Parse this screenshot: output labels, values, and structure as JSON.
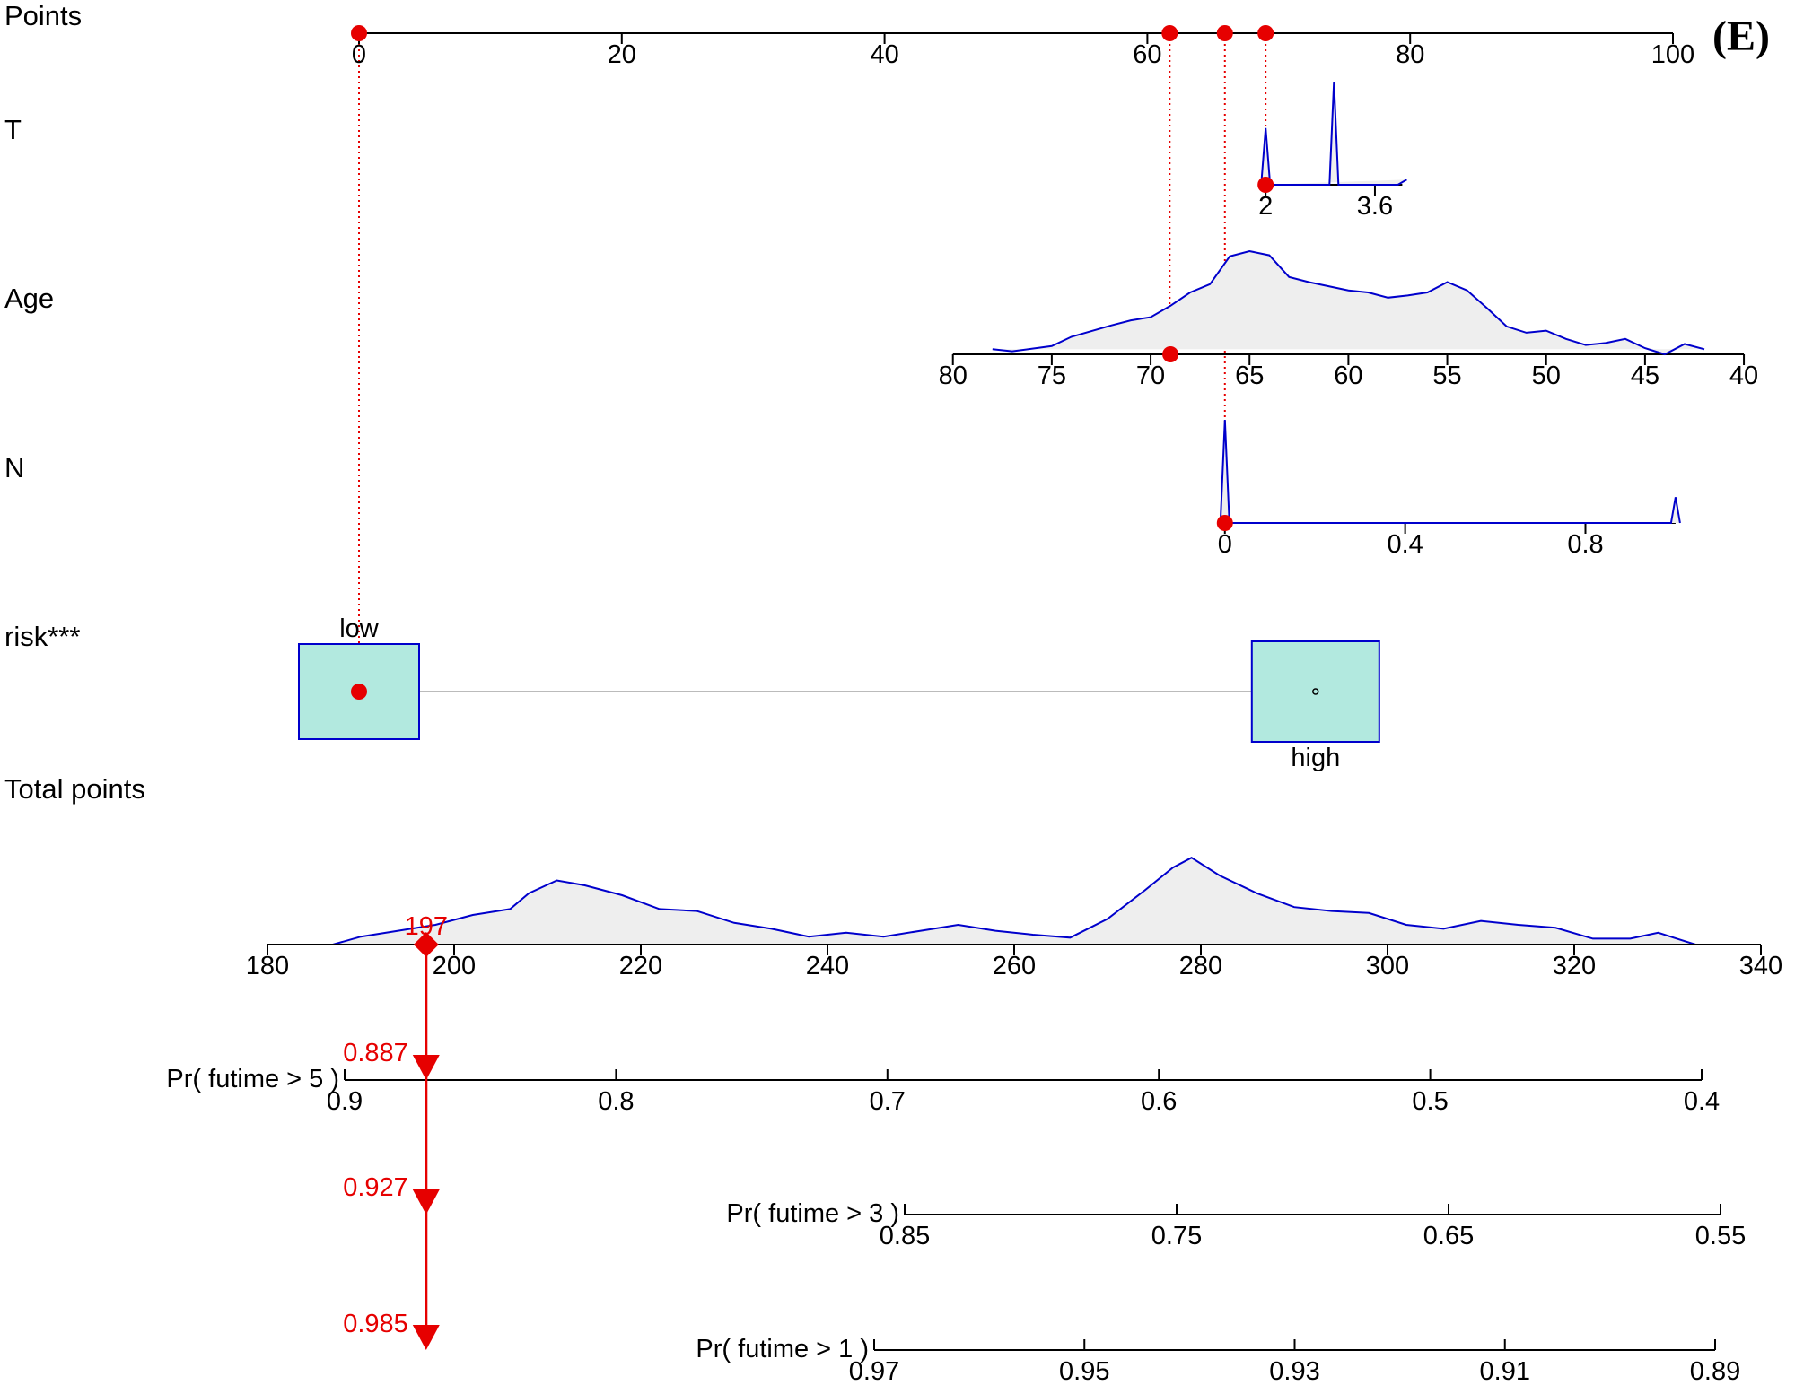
{
  "panel_label": "(E)",
  "chart_data": {
    "type": "nomogram",
    "points_axis": {
      "label": "Points",
      "ticks": [
        "0",
        "20",
        "40",
        "60",
        "80",
        "100"
      ],
      "tick_values": [
        0,
        20,
        40,
        60,
        80,
        100
      ],
      "range": [
        0,
        100
      ],
      "markers": [
        0,
        61.7,
        65.9,
        69.0
      ]
    },
    "variables": [
      {
        "key": "T",
        "label": "T",
        "ticks": [
          "2",
          "3.6"
        ],
        "tick_values": [
          2,
          3.6
        ],
        "scale_values": [
          2,
          4
        ],
        "scale_points": [
          69.0,
          79.4
        ],
        "selected_value": 2,
        "selected_points": 69.0,
        "density": [
          [
            2,
            0
          ],
          [
            2,
            0.55
          ],
          [
            2,
            0
          ],
          [
            3,
            0
          ],
          [
            3,
            1.0
          ],
          [
            3,
            0
          ],
          [
            4,
            0
          ],
          [
            4,
            0.05
          ]
        ]
      },
      {
        "key": "Age",
        "label": "Age",
        "ticks": [
          "80",
          "75",
          "70",
          "65",
          "60",
          "55",
          "50",
          "45",
          "40"
        ],
        "tick_values": [
          80,
          75,
          70,
          65,
          60,
          55,
          50,
          45,
          40
        ],
        "scale_values": [
          80,
          40
        ],
        "scale_points": [
          45.2,
          105.4
        ],
        "selected_value": 69,
        "selected_points": 61.7,
        "density": [
          [
            78,
            0.05
          ],
          [
            77,
            0.03
          ],
          [
            75,
            0.08
          ],
          [
            74,
            0.17
          ],
          [
            72,
            0.28
          ],
          [
            71,
            0.33
          ],
          [
            70,
            0.36
          ],
          [
            69,
            0.47
          ],
          [
            68,
            0.6
          ],
          [
            67,
            0.68
          ],
          [
            66,
            0.95
          ],
          [
            65,
            1.0
          ],
          [
            64,
            0.96
          ],
          [
            63,
            0.75
          ],
          [
            62,
            0.7
          ],
          [
            61,
            0.66
          ],
          [
            60,
            0.62
          ],
          [
            59,
            0.6
          ],
          [
            58,
            0.55
          ],
          [
            57,
            0.57
          ],
          [
            56,
            0.6
          ],
          [
            55,
            0.7
          ],
          [
            54,
            0.62
          ],
          [
            53,
            0.45
          ],
          [
            52,
            0.27
          ],
          [
            51,
            0.21
          ],
          [
            50,
            0.23
          ],
          [
            49,
            0.15
          ],
          [
            48,
            0.09
          ],
          [
            47,
            0.11
          ],
          [
            46,
            0.15
          ],
          [
            45,
            0.06
          ],
          [
            44,
            0.0
          ],
          [
            43,
            0.1
          ],
          [
            42,
            0.05
          ]
        ]
      },
      {
        "key": "N",
        "label": "N",
        "ticks": [
          "0",
          "0.4",
          "0.8"
        ],
        "tick_values": [
          0,
          0.4,
          0.8
        ],
        "scale_values": [
          0,
          1
        ],
        "scale_points": [
          65.9,
          100.2
        ],
        "selected_value": 0,
        "selected_points": 65.9,
        "density": [
          [
            0,
            0
          ],
          [
            0,
            1.0
          ],
          [
            0,
            0
          ],
          [
            1,
            0
          ],
          [
            1,
            0.25
          ],
          [
            1,
            0
          ]
        ]
      },
      {
        "key": "risk",
        "label": "risk***",
        "categories": [
          "low",
          "high"
        ],
        "category_points": [
          0,
          72.8
        ],
        "selected_value": "low",
        "selected_points": 0
      }
    ],
    "total_points_axis": {
      "label": "Total points",
      "ticks": [
        "180",
        "200",
        "220",
        "240",
        "260",
        "280",
        "300",
        "320",
        "340"
      ],
      "tick_values": [
        180,
        200,
        220,
        240,
        260,
        280,
        300,
        320,
        340
      ],
      "range": [
        180,
        340
      ],
      "selected_value": 197,
      "selected_label": "197",
      "density": [
        [
          187,
          0
        ],
        [
          190,
          0.08
        ],
        [
          194,
          0.14
        ],
        [
          198,
          0.2
        ],
        [
          202,
          0.3
        ],
        [
          206,
          0.36
        ],
        [
          208,
          0.52
        ],
        [
          211,
          0.65
        ],
        [
          214,
          0.6
        ],
        [
          218,
          0.5
        ],
        [
          222,
          0.36
        ],
        [
          226,
          0.34
        ],
        [
          230,
          0.22
        ],
        [
          234,
          0.16
        ],
        [
          238,
          0.08
        ],
        [
          242,
          0.12
        ],
        [
          246,
          0.08
        ],
        [
          250,
          0.14
        ],
        [
          254,
          0.2
        ],
        [
          258,
          0.14
        ],
        [
          262,
          0.1
        ],
        [
          266,
          0.07
        ],
        [
          270,
          0.26
        ],
        [
          274,
          0.55
        ],
        [
          277,
          0.78
        ],
        [
          279,
          0.88
        ],
        [
          282,
          0.7
        ],
        [
          286,
          0.52
        ],
        [
          290,
          0.38
        ],
        [
          294,
          0.34
        ],
        [
          298,
          0.32
        ],
        [
          302,
          0.2
        ],
        [
          306,
          0.16
        ],
        [
          310,
          0.24
        ],
        [
          314,
          0.2
        ],
        [
          318,
          0.17
        ],
        [
          322,
          0.06
        ],
        [
          326,
          0.06
        ],
        [
          329,
          0.12
        ],
        [
          331,
          0.06
        ],
        [
          333,
          0
        ]
      ]
    },
    "probability_axes": [
      {
        "label": "Pr( futime > 5 )",
        "ticks": [
          "0.9",
          "0.8",
          "0.7",
          "0.6",
          "0.5",
          "0.4"
        ],
        "tick_values": [
          0.9,
          0.8,
          0.7,
          0.6,
          0.5,
          0.4
        ],
        "selected_value": 0.887,
        "selected_label": "0.887"
      },
      {
        "label": "Pr( futime > 3 )",
        "ticks": [
          "0.85",
          "0.75",
          "0.65",
          "0.55"
        ],
        "tick_values": [
          0.85,
          0.75,
          0.65,
          0.55
        ],
        "selected_value": 0.927,
        "selected_label": "0.927"
      },
      {
        "label": "Pr( futime > 1 )",
        "ticks": [
          "0.97",
          "0.95",
          "0.93",
          "0.91",
          "0.89"
        ],
        "tick_values": [
          0.97,
          0.95,
          0.93,
          0.91,
          0.89
        ],
        "selected_value": 0.985,
        "selected_label": "0.985"
      }
    ]
  }
}
